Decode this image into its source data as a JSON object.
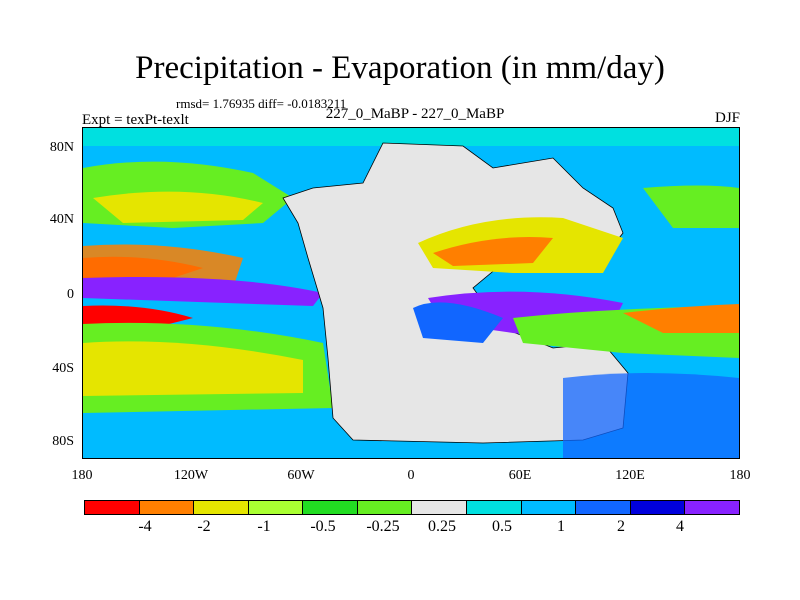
{
  "title": "Precipitation - Evaporation (in mm/day)",
  "stats": "rmsd= 1.76935 diff= -0.0183211",
  "left_string": "Expt = texPt-texlt",
  "center_string": "227_0_MaBP - 227_0_MaBP",
  "right_string": "DJF",
  "y_ticks": [
    "80N",
    "40N",
    "0",
    "40S",
    "80S"
  ],
  "x_ticks": [
    "180",
    "120W",
    "60W",
    "0",
    "60E",
    "120E",
    "180"
  ],
  "colors": {
    "c1": "#ff0000",
    "c2": "#ff7f00",
    "c3": "#e5e500",
    "c4": "#aaff32",
    "c5": "#66ee22",
    "c6": "#22dd22",
    "c7": "#e6e6e6",
    "c8": "#00e0e0",
    "c9": "#00bbff",
    "c10": "#1166ff",
    "c11": "#0000dd",
    "c12": "#8822ff"
  },
  "legend": {
    "colors": [
      "#ff0000",
      "#ff7f00",
      "#e5e500",
      "#aaff32",
      "#22dd22",
      "#66ee22",
      "#e6e6e6",
      "#00e0e0",
      "#00bbff",
      "#1166ff",
      "#0000dd",
      "#8822ff"
    ],
    "labels": [
      "-4",
      "-2",
      "-1",
      "-0.5",
      "-0.25",
      "0.25",
      "0.5",
      "1",
      "2",
      "4"
    ]
  }
}
